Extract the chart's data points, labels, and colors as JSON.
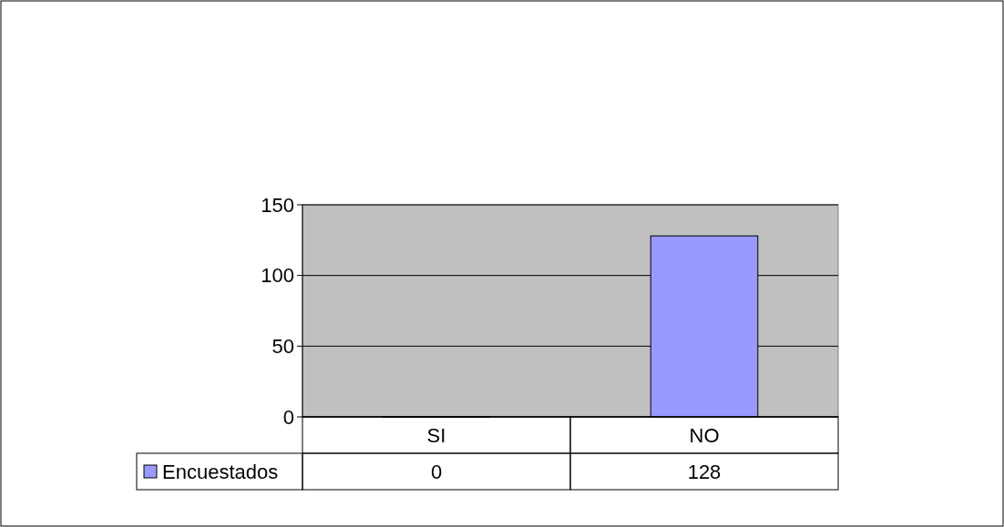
{
  "chart_data": {
    "type": "bar",
    "categories": [
      "SI",
      "NO"
    ],
    "series": [
      {
        "name": "Encuestados",
        "color": "#9999ff",
        "values": [
          0,
          128
        ]
      }
    ],
    "ylim": [
      0,
      150
    ],
    "yticks": [
      0,
      50,
      100,
      150
    ],
    "grid": "y",
    "data_labels": true,
    "legend": "bottom"
  }
}
